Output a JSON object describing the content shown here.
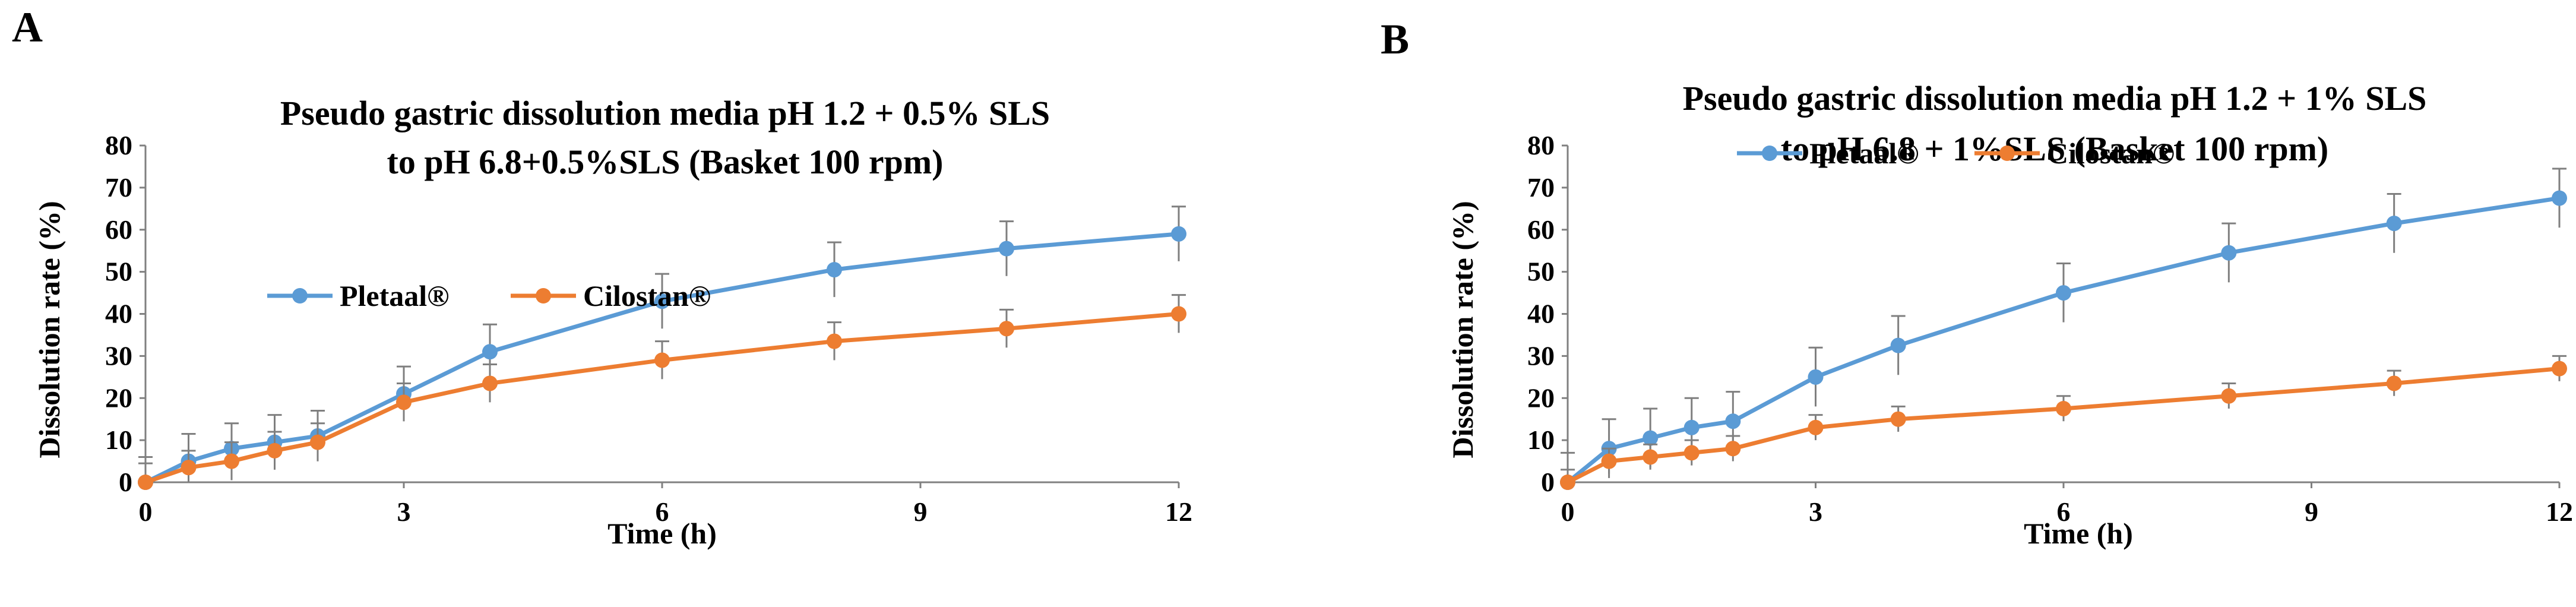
{
  "chart_data": [
    {
      "panel_label": "A",
      "type": "line",
      "title_lines": [
        "Pseudo gastric dissolution media pH 1.2 + 0.5% SLS",
        "to pH 6.8+0.5%SLS  (Basket 100 rpm)"
      ],
      "xlabel": "Time (h)",
      "ylabel": "Dissolution rate (%)",
      "xlim": [
        0,
        12
      ],
      "ylim": [
        0,
        80
      ],
      "xticks": [
        0,
        3,
        6,
        9,
        12
      ],
      "yticks": [
        0,
        10,
        20,
        30,
        40,
        50,
        60,
        70,
        80
      ],
      "grid": false,
      "legend_position": "upper-left",
      "x": [
        0,
        0.5,
        1,
        1.5,
        2,
        3,
        4,
        6,
        8,
        10,
        12
      ],
      "series": [
        {
          "name": "Pletaal®",
          "color": "#5B9BD5",
          "values": [
            0,
            5,
            8,
            9.5,
            11,
            21,
            31,
            43,
            50.5,
            55.5,
            59
          ],
          "errors": [
            6,
            6.5,
            6,
            6.5,
            6,
            6.5,
            6.5,
            6.5,
            6.5,
            6.5,
            6.5
          ]
        },
        {
          "name": "Cilostan®",
          "color": "#ED7D31",
          "values": [
            0,
            3.5,
            5,
            7.5,
            9.5,
            19,
            23.5,
            29,
            33.5,
            36.5,
            40
          ],
          "errors": [
            4.5,
            4,
            4.5,
            4.5,
            4.5,
            4.5,
            4.5,
            4.5,
            4.5,
            4.5,
            4.5
          ]
        }
      ]
    },
    {
      "panel_label": "B",
      "type": "line",
      "title_lines": [
        "Pseudo gastric dissolution media pH 1.2 + 1% SLS",
        "to pH 6.8 + 1%SLS  (Basket 100 rpm)"
      ],
      "xlabel": "Time (h)",
      "ylabel": "Dissolution rate (%)",
      "xlim": [
        0,
        12
      ],
      "ylim": [
        0,
        80
      ],
      "xticks": [
        0,
        3,
        6,
        9,
        12
      ],
      "yticks": [
        0,
        10,
        20,
        30,
        40,
        50,
        60,
        70,
        80
      ],
      "grid": false,
      "legend_position": "upper-left",
      "x": [
        0,
        0.5,
        1,
        1.5,
        2,
        3,
        4,
        6,
        8,
        10,
        12
      ],
      "series": [
        {
          "name": "Pletaal®",
          "color": "#5B9BD5",
          "values": [
            0,
            8,
            10.5,
            13,
            14.5,
            25,
            32.5,
            45,
            54.5,
            61.5,
            67.5
          ],
          "errors": [
            7,
            7,
            7,
            7,
            7,
            7,
            7,
            7,
            7,
            7,
            7
          ]
        },
        {
          "name": "Cilostan®",
          "color": "#ED7D31",
          "values": [
            0,
            5,
            6,
            7,
            8,
            13,
            15,
            17.5,
            20.5,
            23.5,
            27
          ],
          "errors": [
            3,
            3,
            3,
            3,
            3,
            3,
            3,
            3,
            3,
            3,
            3
          ]
        }
      ]
    }
  ]
}
